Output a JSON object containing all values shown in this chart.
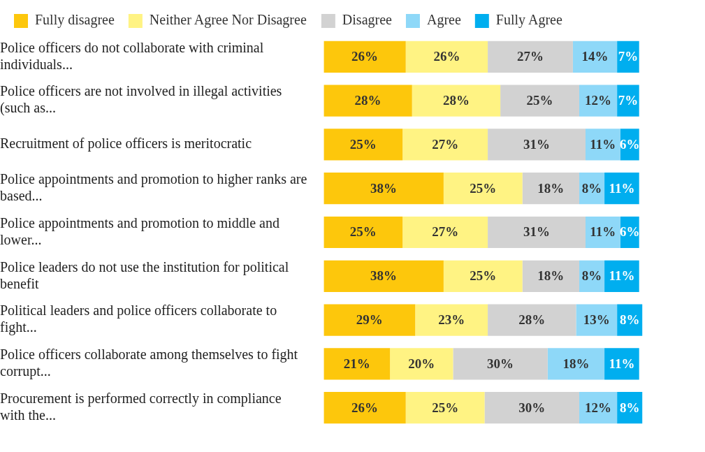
{
  "chart_data": {
    "type": "bar",
    "orientation": "horizontal",
    "stacked": true,
    "legend": "top left",
    "tick_labels": "y",
    "categories": [
      "Police officers do not collaborate with criminal individuals...",
      "Police officers are not involved in illegal activities (such as...",
      "Recruitment of police officers is meritocratic",
      "Police appointments and promotion to higher ranks are based...",
      "Police appointments and promotion to middle and lower...",
      "Police leaders do not use the institution for political benefit",
      "Political leaders and police officers collaborate to fight...",
      "Police officers collaborate among themselves to fight corrupt...",
      "Procurement is performed correctly in compliance with the..."
    ],
    "series": [
      {
        "name": "Fully disagree",
        "color": "#fdc70c",
        "values": [
          26,
          28,
          25,
          38,
          25,
          38,
          29,
          21,
          26
        ],
        "value_labels": [
          "26%",
          "28%",
          "25%",
          "38%",
          "25%",
          "38%",
          "29%",
          "21%",
          "26%"
        ]
      },
      {
        "name": "Neither Agree Nor Disagree",
        "color": "#fff383",
        "values": [
          26,
          28,
          27,
          25,
          27,
          25,
          23,
          20,
          25
        ],
        "value_labels": [
          "26%",
          "28%",
          "27%",
          "25%",
          "27%",
          "25%",
          "23%",
          "20%",
          "25%"
        ]
      },
      {
        "name": "Disagree",
        "color": "#d2d2d2",
        "values": [
          27,
          25,
          31,
          18,
          31,
          18,
          28,
          30,
          30
        ],
        "value_labels": [
          "27%",
          "25%",
          "31%",
          "18%",
          "31%",
          "18%",
          "28%",
          "30%",
          "30%"
        ]
      },
      {
        "name": "Agree",
        "color": "#8ed8f8",
        "values": [
          14,
          12,
          11,
          8,
          11,
          8,
          13,
          18,
          12
        ],
        "value_labels": [
          "14%",
          "12%",
          "11%",
          "8%",
          "11%",
          "8%",
          "13%",
          "18%",
          "12%"
        ]
      },
      {
        "name": "Fully Agree",
        "color": "#00aeef",
        "values": [
          7,
          7,
          6,
          11,
          6,
          11,
          8,
          11,
          8
        ],
        "value_labels": [
          "7%",
          "7%",
          "6%",
          "11%",
          "6%",
          "11%",
          "8%",
          "11%",
          "8%"
        ]
      }
    ]
  }
}
